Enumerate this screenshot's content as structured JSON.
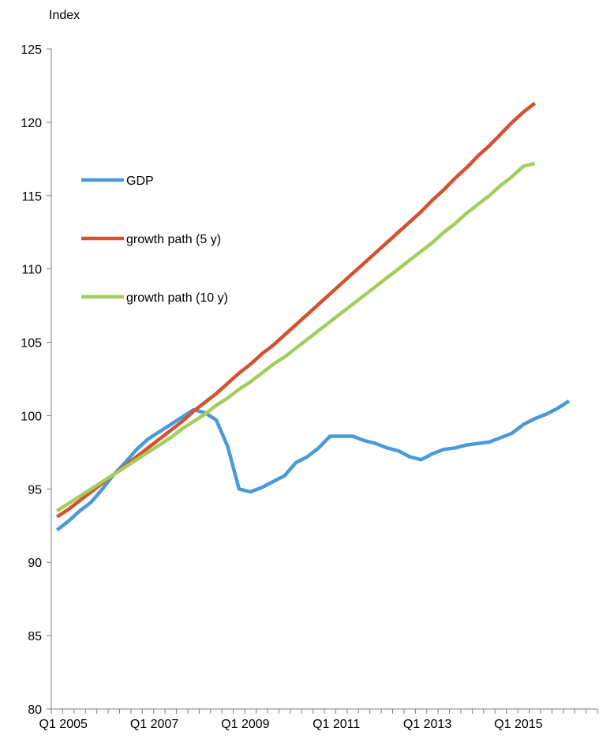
{
  "chart_data": {
    "type": "line",
    "ylabel": "Index",
    "ylim": [
      80,
      125
    ],
    "yticks": [
      80,
      85,
      90,
      95,
      100,
      105,
      110,
      115,
      120,
      125
    ],
    "x_tick_labels": [
      "Q1 2005",
      "Q1 2007",
      "Q1 2009",
      "Q1 2011",
      "Q1 2013",
      "Q1 2015"
    ],
    "x_periods": [
      "Q1 2005",
      "Q2 2005",
      "Q3 2005",
      "Q4 2005",
      "Q1 2006",
      "Q2 2006",
      "Q3 2006",
      "Q4 2006",
      "Q1 2007",
      "Q2 2007",
      "Q3 2007",
      "Q4 2007",
      "Q1 2008",
      "Q2 2008",
      "Q3 2008",
      "Q4 2008",
      "Q1 2009",
      "Q2 2009",
      "Q3 2009",
      "Q4 2009",
      "Q1 2010",
      "Q2 2010",
      "Q3 2010",
      "Q4 2010",
      "Q1 2011",
      "Q2 2011",
      "Q3 2011",
      "Q4 2011",
      "Q1 2012",
      "Q2 2012",
      "Q3 2012",
      "Q4 2012",
      "Q1 2013",
      "Q2 2013",
      "Q3 2013",
      "Q4 2013",
      "Q1 2014",
      "Q2 2014",
      "Q3 2014",
      "Q4 2014",
      "Q1 2015",
      "Q2 2015",
      "Q3 2015",
      "Q4 2015",
      "Q1 2016",
      "Q2 2016",
      "Q3 2016",
      "Q4 2016"
    ],
    "grid": false,
    "legend_position": "left, inside plot",
    "series": [
      {
        "name": "GDP",
        "color": "#4a9ad8",
        "values": [
          92.2,
          92.8,
          93.5,
          94.1,
          95.0,
          96.0,
          96.8,
          97.7,
          98.4,
          98.9,
          99.4,
          99.9,
          100.4,
          100.2,
          99.7,
          97.9,
          95.0,
          94.8,
          95.1,
          95.5,
          95.9,
          96.8,
          97.2,
          97.8,
          98.6,
          98.6,
          98.6,
          98.3,
          98.1,
          97.8,
          97.6,
          97.2,
          97.0,
          97.4,
          97.7,
          97.8,
          98.0,
          98.1,
          98.2,
          98.5,
          98.8,
          99.4,
          99.8,
          100.1,
          100.5,
          101.0
        ]
      },
      {
        "name": "growth path (5 y)",
        "color": "#d4522f",
        "values": [
          93.1,
          93.6,
          94.2,
          94.8,
          95.4,
          96.0,
          96.6,
          97.2,
          97.8,
          98.4,
          99.0,
          99.6,
          100.3,
          100.9,
          101.5,
          102.2,
          102.9,
          103.5,
          104.2,
          104.8,
          105.5,
          106.2,
          106.9,
          107.6,
          108.3,
          109.0,
          109.7,
          110.4,
          111.1,
          111.8,
          112.5,
          113.2,
          113.9,
          114.7,
          115.4,
          116.2,
          116.9,
          117.7,
          118.4,
          119.2,
          120.0,
          120.7,
          121.3
        ]
      },
      {
        "name": "growth path (10 y)",
        "color": "#a3cd5d",
        "values": [
          93.5,
          94.0,
          94.5,
          95.0,
          95.5,
          96.0,
          96.5,
          97.0,
          97.5,
          98.0,
          98.5,
          99.1,
          99.6,
          100.1,
          100.7,
          101.2,
          101.8,
          102.3,
          102.9,
          103.5,
          104.0,
          104.6,
          105.2,
          105.8,
          106.4,
          107.0,
          107.6,
          108.2,
          108.8,
          109.4,
          110.0,
          110.6,
          111.2,
          111.8,
          112.5,
          113.1,
          113.8,
          114.4,
          115.0,
          115.7,
          116.3,
          117.0,
          117.2
        ]
      }
    ]
  }
}
